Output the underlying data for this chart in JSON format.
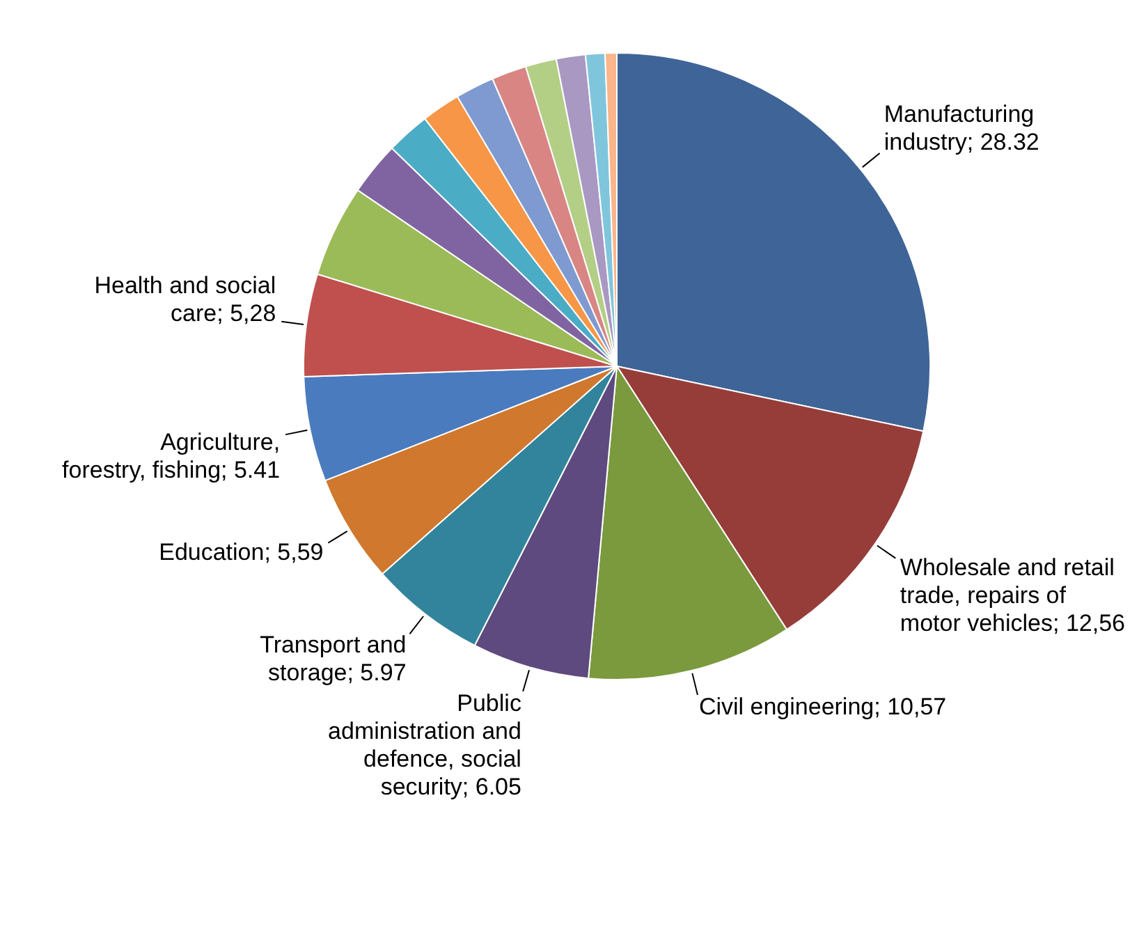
{
  "chart_data": {
    "type": "pie",
    "categories": [
      "Manufacturing industry",
      "Wholesale and retail trade, repairs of motor vehicles",
      "Civil engineering",
      "Public administration and defence, social security",
      "Transport and storage",
      "Education",
      "Agriculture, forestry, fishing",
      "Health and social care",
      null,
      null,
      null,
      null,
      null,
      null,
      null,
      null,
      null,
      null
    ],
    "values": [
      28.32,
      12.56,
      10.57,
      6.05,
      5.97,
      5.59,
      5.41,
      5.28,
      4.75,
      2.75,
      2.25,
      2.0,
      2.0,
      1.8,
      1.6,
      1.5,
      1.0,
      0.6
    ],
    "value_labels": [
      "28.32",
      "12,56",
      "10,57",
      "6.05",
      "5.97",
      "5,59",
      "5.41",
      "5,28",
      null,
      null,
      null,
      null,
      null,
      null,
      null,
      null,
      null,
      null
    ],
    "colors": [
      "#3f6497",
      "#963d3a",
      "#7a9a3d",
      "#5e4a7e",
      "#31849b",
      "#d0782e",
      "#4a7bbf",
      "#c0504d",
      "#9bbb59",
      "#8064a2",
      "#4bacc6",
      "#f79646",
      "#7e9ad0",
      "#d98584",
      "#b3cf86",
      "#a898c2",
      "#7fc6dd",
      "#fab58a"
    ]
  }
}
